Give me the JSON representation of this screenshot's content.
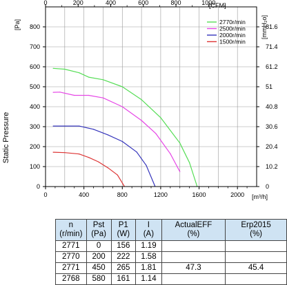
{
  "chart_data": {
    "type": "line",
    "ylabel": "Static Pressure",
    "y_unit": "[Pa]",
    "y2_unit": "[mmH₂o]",
    "x_unit": "[m³/h]",
    "x2_unit": "[CFM]",
    "xlim": [
      0,
      2200
    ],
    "ylim": [
      0,
      900
    ],
    "x_ticks": [
      "0",
      "400",
      "800",
      "1200",
      "1600",
      "2000"
    ],
    "y_ticks": [
      "0",
      "100",
      "200",
      "300",
      "400",
      "500",
      "600",
      "700",
      "800"
    ],
    "x2_ticks": [
      "0",
      "200",
      "400",
      "600",
      "800",
      "1000"
    ],
    "y2_ticks": [
      "0",
      "10.2",
      "20.4",
      "30.6",
      "40.8",
      "51",
      "61.2",
      "71.4",
      "81.6"
    ],
    "grid": true,
    "legend_position": "top-right",
    "series": [
      {
        "name": "2770r/min",
        "color": "#55dd55",
        "x": [
          80,
          200,
          350,
          450,
          600,
          800,
          1000,
          1200,
          1400,
          1500,
          1580
        ],
        "y": [
          592,
          588,
          570,
          548,
          535,
          500,
          435,
          345,
          218,
          120,
          0
        ]
      },
      {
        "name": "2500r/min",
        "color": "#e646e6",
        "x": [
          80,
          150,
          300,
          450,
          600,
          800,
          1000,
          1150,
          1300,
          1400
        ],
        "y": [
          472,
          473,
          457,
          457,
          444,
          400,
          331,
          265,
          165,
          75
        ]
      },
      {
        "name": "2000r/min",
        "color": "#3333bb",
        "x": [
          80,
          200,
          350,
          500,
          650,
          800,
          950,
          1050,
          1140
        ],
        "y": [
          303,
          303,
          303,
          287,
          259,
          226,
          173,
          106,
          2
        ]
      },
      {
        "name": "1500r/min",
        "color": "#dd3333",
        "x": [
          80,
          200,
          350,
          450,
          550,
          650,
          750,
          820
        ],
        "y": [
          172,
          170,
          163,
          146,
          124,
          94,
          58,
          2
        ]
      }
    ]
  },
  "table": {
    "headers": [
      {
        "line1": "n",
        "line2": "(r/min)"
      },
      {
        "line1": "Pst",
        "line2": "(Pa)"
      },
      {
        "line1": "P1",
        "line2": "(W)"
      },
      {
        "line1": "I",
        "line2": "(A)"
      },
      {
        "line1": "ActualEFF",
        "line2": "(%)"
      },
      {
        "line1": "Erp2015",
        "line2": "(%)"
      }
    ],
    "rows": [
      [
        "2771",
        "0",
        "156",
        "1.19",
        "",
        ""
      ],
      [
        "2770",
        "200",
        "222",
        "1.58",
        "",
        ""
      ],
      [
        "2771",
        "450",
        "265",
        "1.81",
        "47.3",
        "45.4"
      ],
      [
        "2768",
        "580",
        "161",
        "1.14",
        "",
        ""
      ]
    ]
  }
}
